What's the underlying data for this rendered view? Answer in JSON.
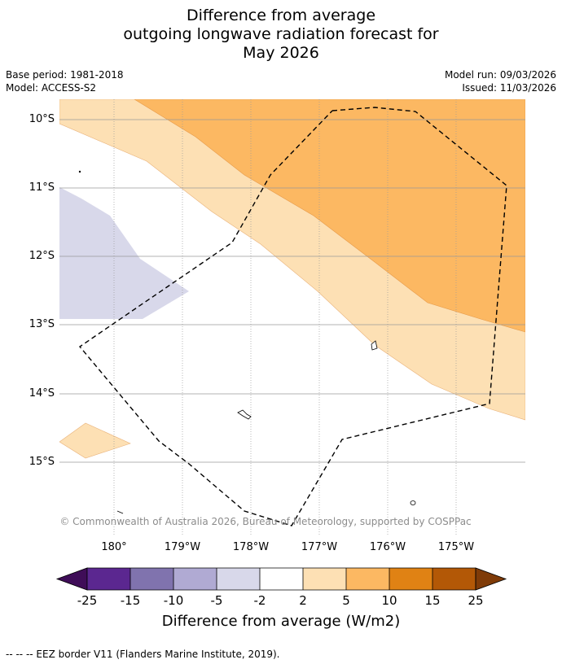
{
  "header": {
    "title_line1": "Difference from average",
    "title_line2": "outgoing longwave radiation forecast for",
    "title_line3": "May 2026",
    "base_period": "Base period: 1981-2018",
    "model": "Model: ACCESS-S2",
    "model_run": "Model run: 09/03/2026",
    "issued": "Issued: 11/03/2026"
  },
  "map": {
    "lat_labels": [
      "10°S",
      "11°S",
      "12°S",
      "13°S",
      "14°S",
      "15°S"
    ],
    "lon_labels": [
      "180°",
      "179°W",
      "178°W",
      "177°W",
      "176°W",
      "175°W"
    ],
    "copyright": "© Commonwealth of Australia 2026, Bureau of Meteorology, supported by COSPPac"
  },
  "colorbar": {
    "labels": [
      "-25",
      "-15",
      "-10",
      "-5",
      "-2",
      "2",
      "5",
      "10",
      "15",
      "25"
    ],
    "colors": [
      "#3f0d58",
      "#5b2790",
      "#8073ae",
      "#b0aad3",
      "#d8d8ea",
      "#ffffff",
      "#fde0b4",
      "#fcb862",
      "#e08214",
      "#b35806",
      "#7f3b08"
    ],
    "title": "Difference from average (W/m2)"
  },
  "footer": {
    "eez_legend": "--  --  -- EEZ border V11 (Flanders Marine Institute, 2019)."
  }
}
